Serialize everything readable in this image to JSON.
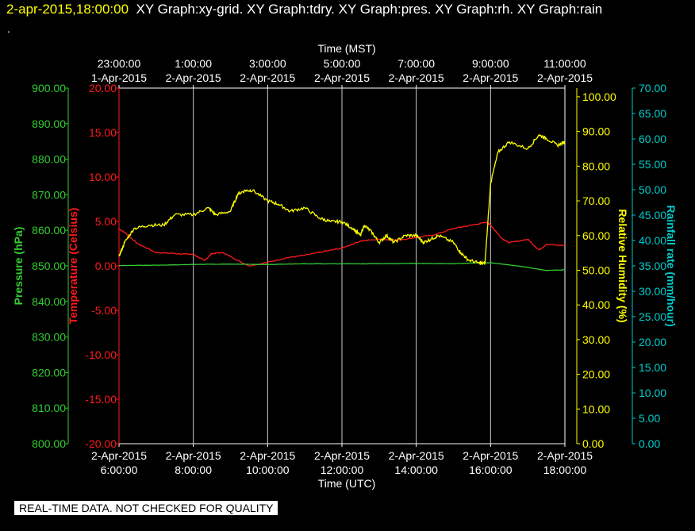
{
  "header": {
    "timestamp": "2-apr-2015,18:00:00",
    "graphs": "XY Graph:xy-grid.  XY Graph:tdry.  XY Graph:pres.  XY Graph:rh.  XY Graph:rain",
    "dot": "."
  },
  "footer": {
    "notice": "REAL-TIME DATA. NOT CHECKED FOR QUALITY"
  },
  "colors": {
    "temperature": "#ff1a1a",
    "pressure": "#33cc33",
    "humidity": "#ffff00",
    "rainfall": "#00cccc",
    "grid": "#cccccc"
  },
  "chart_data": {
    "type": "line",
    "x_range_utc_hours": [
      6,
      18
    ],
    "grid": true,
    "top_axis": {
      "label": "Time (MST)",
      "ticks": [
        {
          "x": 6,
          "time": "23:00:00",
          "date": "1-Apr-2015"
        },
        {
          "x": 8,
          "time": "1:00:00",
          "date": "2-Apr-2015"
        },
        {
          "x": 10,
          "time": "3:00:00",
          "date": "2-Apr-2015"
        },
        {
          "x": 12,
          "time": "5:00:00",
          "date": "2-Apr-2015"
        },
        {
          "x": 14,
          "time": "7:00:00",
          "date": "2-Apr-2015"
        },
        {
          "x": 16,
          "time": "9:00:00",
          "date": "2-Apr-2015"
        },
        {
          "x": 18,
          "time": "11:00:00",
          "date": "2-Apr-2015"
        }
      ]
    },
    "bottom_axis": {
      "label": "Time (UTC)",
      "ticks": [
        {
          "x": 6,
          "date": "2-Apr-2015",
          "time": "6:00:00"
        },
        {
          "x": 8,
          "date": "2-Apr-2015",
          "time": "8:00:00"
        },
        {
          "x": 10,
          "date": "2-Apr-2015",
          "time": "10:00:00"
        },
        {
          "x": 12,
          "date": "2-Apr-2015",
          "time": "12:00:00"
        },
        {
          "x": 14,
          "date": "2-Apr-2015",
          "time": "14:00:00"
        },
        {
          "x": 16,
          "date": "2-Apr-2015",
          "time": "16:00:00"
        },
        {
          "x": 18,
          "date": "2-Apr-2015",
          "time": "18:00:00"
        }
      ]
    },
    "axes": {
      "pressure": {
        "label": "Pressure (hPa)",
        "range": [
          800,
          900
        ],
        "ticks": [
          {
            "v": 900,
            "t": "900.00"
          },
          {
            "v": 890,
            "t": "890.00"
          },
          {
            "v": 880,
            "t": "880.00"
          },
          {
            "v": 870,
            "t": "870.00"
          },
          {
            "v": 860,
            "t": "860.00"
          },
          {
            "v": 850,
            "t": "850.00"
          },
          {
            "v": 840,
            "t": "840.00"
          },
          {
            "v": 830,
            "t": "830.00"
          },
          {
            "v": 820,
            "t": "820.00"
          },
          {
            "v": 810,
            "t": "810.00"
          },
          {
            "v": 800,
            "t": "800.00"
          }
        ]
      },
      "temperature": {
        "label": "Temperature (Celsius)",
        "range": [
          -20,
          20
        ],
        "ticks": [
          {
            "v": 20,
            "t": "20.00"
          },
          {
            "v": 15,
            "t": "15.00"
          },
          {
            "v": 10,
            "t": "10.00"
          },
          {
            "v": 5,
            "t": "5.00"
          },
          {
            "v": 0,
            "t": "0.00"
          },
          {
            "v": -5,
            "t": "-5.00"
          },
          {
            "v": -10,
            "t": "-10.00"
          },
          {
            "v": -15,
            "t": "-15.00"
          },
          {
            "v": -20,
            "t": "-20.00"
          }
        ]
      },
      "humidity": {
        "label": "Relative Humidity (%)",
        "range": [
          0,
          102.5
        ],
        "ticks": [
          {
            "v": 100,
            "t": "100.00"
          },
          {
            "v": 90,
            "t": "90.00"
          },
          {
            "v": 80,
            "t": "80.00"
          },
          {
            "v": 70,
            "t": "70.00"
          },
          {
            "v": 60,
            "t": "60.00"
          },
          {
            "v": 50,
            "t": "50.00"
          },
          {
            "v": 40,
            "t": "40.00"
          },
          {
            "v": 30,
            "t": "30.00"
          },
          {
            "v": 20,
            "t": "20.00"
          },
          {
            "v": 10,
            "t": "10.00"
          },
          {
            "v": 0,
            "t": "0.00"
          }
        ]
      },
      "rainfall": {
        "label": "Rainfall rate (mm/hour)",
        "range": [
          0,
          70
        ],
        "ticks": [
          {
            "v": 70,
            "t": "70.00"
          },
          {
            "v": 65,
            "t": "65.00"
          },
          {
            "v": 60,
            "t": "60.00"
          },
          {
            "v": 55,
            "t": "55.00"
          },
          {
            "v": 50,
            "t": "50.00"
          },
          {
            "v": 45,
            "t": "45.00"
          },
          {
            "v": 40,
            "t": "40.00"
          },
          {
            "v": 35,
            "t": "35.00"
          },
          {
            "v": 30,
            "t": "30.00"
          },
          {
            "v": 25,
            "t": "25.00"
          },
          {
            "v": 20,
            "t": "20.00"
          },
          {
            "v": 15,
            "t": "15.00"
          },
          {
            "v": 10,
            "t": "10.00"
          },
          {
            "v": 5,
            "t": "5.00"
          },
          {
            "v": 0,
            "t": "0.00"
          }
        ]
      }
    },
    "series": [
      {
        "name": "tdry",
        "axis": "temperature",
        "x": [
          6.0,
          6.2,
          6.5,
          7.0,
          7.5,
          8.0,
          8.3,
          8.5,
          8.8,
          9.2,
          9.5,
          10.0,
          10.5,
          11.0,
          11.5,
          12.0,
          12.5,
          13.0,
          13.5,
          14.0,
          14.5,
          15.0,
          15.5,
          15.9,
          16.0,
          16.3,
          16.5,
          17.0,
          17.3,
          17.5,
          18.0
        ],
        "y": [
          4.2,
          3.6,
          2.5,
          1.5,
          1.4,
          1.3,
          0.6,
          1.4,
          1.5,
          0.6,
          0.0,
          0.4,
          0.9,
          1.2,
          1.6,
          2.0,
          2.8,
          3.0,
          2.9,
          3.2,
          3.5,
          4.2,
          4.6,
          4.9,
          4.6,
          3.1,
          2.6,
          3.0,
          1.8,
          2.4,
          2.3
        ]
      },
      {
        "name": "pres",
        "axis": "pressure",
        "x": [
          6.0,
          7.0,
          8.0,
          9.0,
          10.0,
          11.0,
          12.0,
          13.0,
          14.0,
          15.0,
          15.5,
          16.0,
          16.5,
          17.0,
          17.5,
          18.0
        ],
        "y": [
          850.1,
          850.2,
          850.4,
          850.5,
          850.4,
          850.6,
          850.6,
          850.6,
          850.7,
          850.6,
          850.8,
          850.9,
          850.3,
          849.6,
          848.7,
          848.9
        ]
      },
      {
        "name": "rh",
        "axis": "humidity",
        "x": [
          6.0,
          6.15,
          6.4,
          6.8,
          7.2,
          7.5,
          8.0,
          8.4,
          8.6,
          9.0,
          9.2,
          9.4,
          9.6,
          10.0,
          10.3,
          10.6,
          11.0,
          11.4,
          11.7,
          12.0,
          12.3,
          12.5,
          12.6,
          12.8,
          13.0,
          13.2,
          13.4,
          13.7,
          14.0,
          14.2,
          14.4,
          14.6,
          15.0,
          15.2,
          15.4,
          15.7,
          15.85,
          16.0,
          16.2,
          16.5,
          17.0,
          17.3,
          17.5,
          17.8,
          18.0
        ],
        "y": [
          54,
          58,
          62,
          63,
          63,
          66,
          66,
          68,
          66,
          67,
          72,
          73,
          73,
          70,
          69,
          67,
          68,
          65,
          64,
          64,
          62,
          60,
          63,
          61,
          58,
          60,
          58,
          60,
          60,
          58,
          59,
          60,
          58,
          55,
          53,
          52,
          52,
          75,
          84,
          87,
          85,
          89,
          88,
          86,
          87
        ]
      }
    ]
  }
}
